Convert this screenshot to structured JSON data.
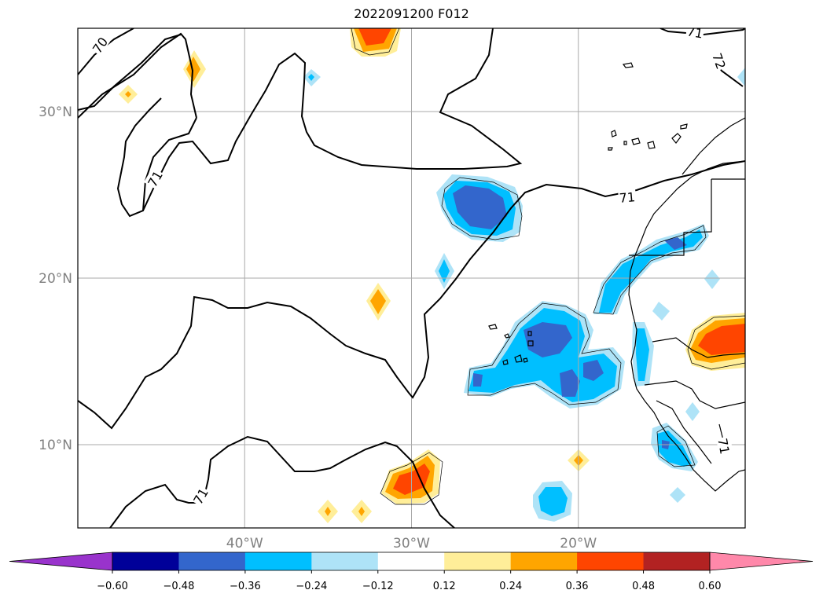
{
  "title": "2022091200 F012",
  "map": {
    "extent": {
      "lon_min": -50,
      "lon_max": -10,
      "lat_min": 5,
      "lat_max": 35
    },
    "lat_ticks": [
      {
        "value": 30,
        "label": "30°N"
      },
      {
        "value": 20,
        "label": "20°N"
      },
      {
        "value": 10,
        "label": "10°N"
      }
    ],
    "lon_ticks": [
      {
        "value": -40,
        "label": "40°W"
      },
      {
        "value": -30,
        "label": "30°W"
      },
      {
        "value": -20,
        "label": "20°W"
      }
    ],
    "grid": true,
    "contour_labels": [
      "70",
      "71",
      "71",
      "71",
      "72",
      "71",
      "71"
    ]
  },
  "colorbar": {
    "extend": "both",
    "colors": [
      "#9933cc",
      "#000099",
      "#3366cc",
      "#00bfff",
      "#aee3f7",
      "#ffffff",
      "#ffee99",
      "#ffa500",
      "#ff4500",
      "#b22222",
      "#ff88aa"
    ],
    "levels": [
      "−0.60",
      "−0.48",
      "−0.36",
      "−0.24",
      "−0.12",
      "0.12",
      "0.24",
      "0.36",
      "0.48",
      "0.60"
    ]
  }
}
